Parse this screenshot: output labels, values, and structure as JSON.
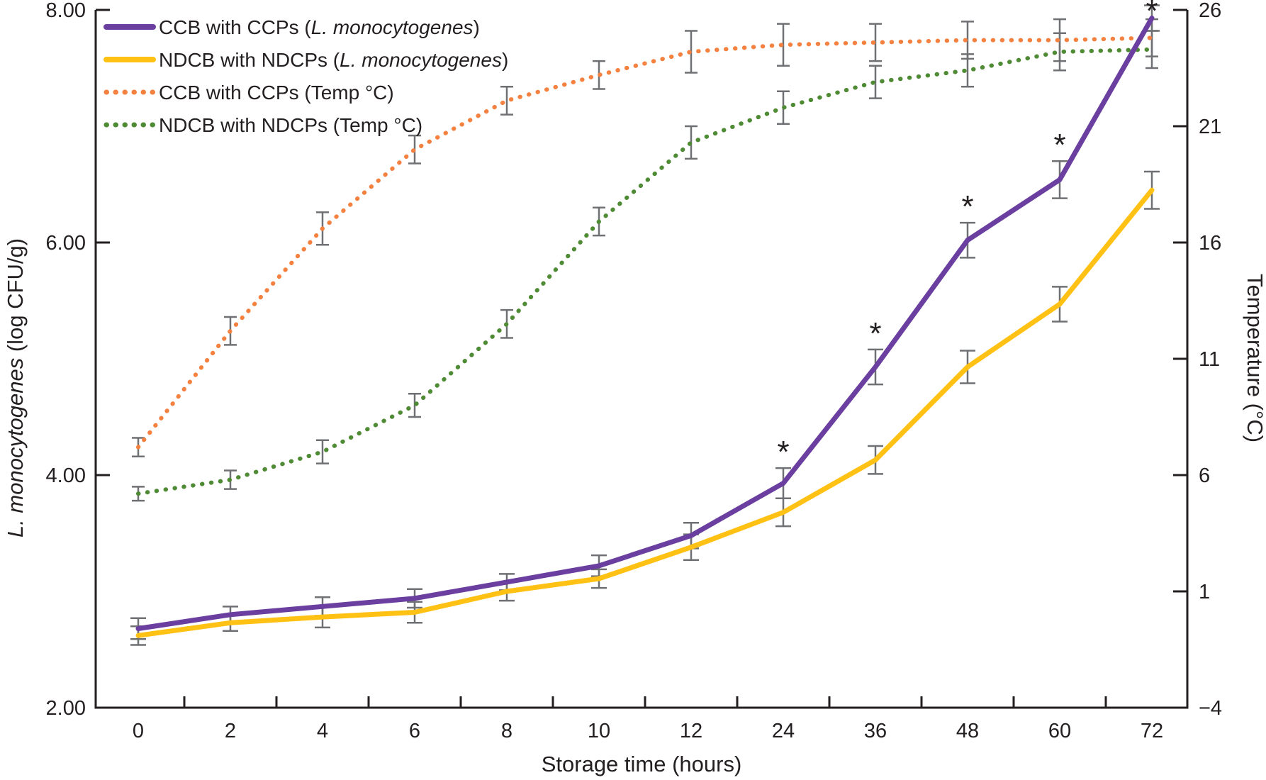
{
  "chart_data": {
    "type": "line",
    "title": "",
    "xlabel": "Storage time (hours)",
    "ylabel_left": {
      "italic": "L. monocytogenes",
      "rest": " (log CFU/g)"
    },
    "ylabel_right": "Temperature (°C)",
    "x_categories": [
      "0",
      "2",
      "4",
      "6",
      "8",
      "10",
      "12",
      "24",
      "36",
      "48",
      "60",
      "72"
    ],
    "left_axis": {
      "min": 2,
      "max": 8,
      "tick_values": [
        8,
        6,
        4,
        2
      ],
      "tick_labels": [
        "8.00",
        "6.00",
        "4.00",
        "2.00"
      ]
    },
    "right_axis": {
      "min": -4,
      "max": 26,
      "tick_values": [
        26,
        21,
        16,
        11,
        6,
        1,
        -4
      ],
      "tick_labels": [
        "26",
        "21",
        "16",
        "11",
        "6",
        "1",
        "−4"
      ]
    },
    "grid": "off",
    "legend_position": "top-left-inside",
    "significance_marker": "*",
    "colors": {
      "ccb_cfu": "#6B3FA0",
      "ndcb_cfu": "#FFC113",
      "ccb_temp": "#F4813F",
      "ndcb_temp": "#4F8A35",
      "error_bar": "#6F7073",
      "axis": "#231F20"
    },
    "legend": [
      {
        "pre": "CCB with CCPs (",
        "it": "L. monocytogenes",
        "post": ")"
      },
      {
        "pre": "NDCB with NDCPs (",
        "it": "L. monocytogenes",
        "post": ")"
      },
      {
        "pre": "CCB with CCPs (Temp °C)",
        "it": "",
        "post": ""
      },
      {
        "pre": "NDCB with NDCPs (Temp °C)",
        "it": "",
        "post": ""
      }
    ],
    "series": [
      {
        "name": "CCB with CCPs (L. monocytogenes)",
        "axis": "left",
        "style": "solid",
        "color_key": "ccb_cfu",
        "values": [
          2.68,
          2.8,
          2.87,
          2.94,
          3.08,
          3.22,
          3.48,
          3.93,
          4.93,
          6.02,
          6.54,
          7.93
        ],
        "errors": [
          0.09,
          0.07,
          0.08,
          0.08,
          0.07,
          0.09,
          0.11,
          0.13,
          0.15,
          0.15,
          0.16,
          0.11
        ],
        "asterisk_indices": [
          7,
          8,
          9,
          10,
          11
        ]
      },
      {
        "name": "NDCB with NDCPs (L. monocytogenes)",
        "axis": "left",
        "style": "solid",
        "color_key": "ndcb_cfu",
        "values": [
          2.62,
          2.73,
          2.78,
          2.82,
          3.0,
          3.11,
          3.38,
          3.68,
          4.13,
          4.93,
          5.47,
          6.45
        ],
        "errors": [
          0.08,
          0.07,
          0.09,
          0.09,
          0.08,
          0.08,
          0.11,
          0.12,
          0.12,
          0.14,
          0.15,
          0.16
        ],
        "asterisk_indices": []
      },
      {
        "name": "CCB with CCPs (Temp °C)",
        "axis": "right",
        "style": "dotted",
        "color_key": "ccb_temp",
        "values": [
          7.2,
          12.2,
          16.6,
          20.0,
          22.1,
          23.2,
          24.2,
          24.5,
          24.6,
          24.7,
          24.7,
          24.8
        ],
        "errors": [
          0.4,
          0.6,
          0.7,
          0.6,
          0.6,
          0.6,
          0.9,
          0.9,
          0.8,
          0.8,
          0.9,
          0.8
        ],
        "asterisk_indices": []
      },
      {
        "name": "NDCB with NDCPs (Temp °C)",
        "axis": "right",
        "style": "dotted",
        "color_key": "ndcb_temp",
        "values": [
          5.2,
          5.8,
          7.0,
          9.0,
          12.5,
          16.9,
          20.3,
          21.8,
          22.9,
          23.4,
          24.2,
          24.3
        ],
        "errors": [
          0.3,
          0.4,
          0.5,
          0.5,
          0.6,
          0.6,
          0.7,
          0.7,
          0.7,
          0.7,
          0.8,
          0.8
        ],
        "asterisk_indices": []
      }
    ]
  }
}
